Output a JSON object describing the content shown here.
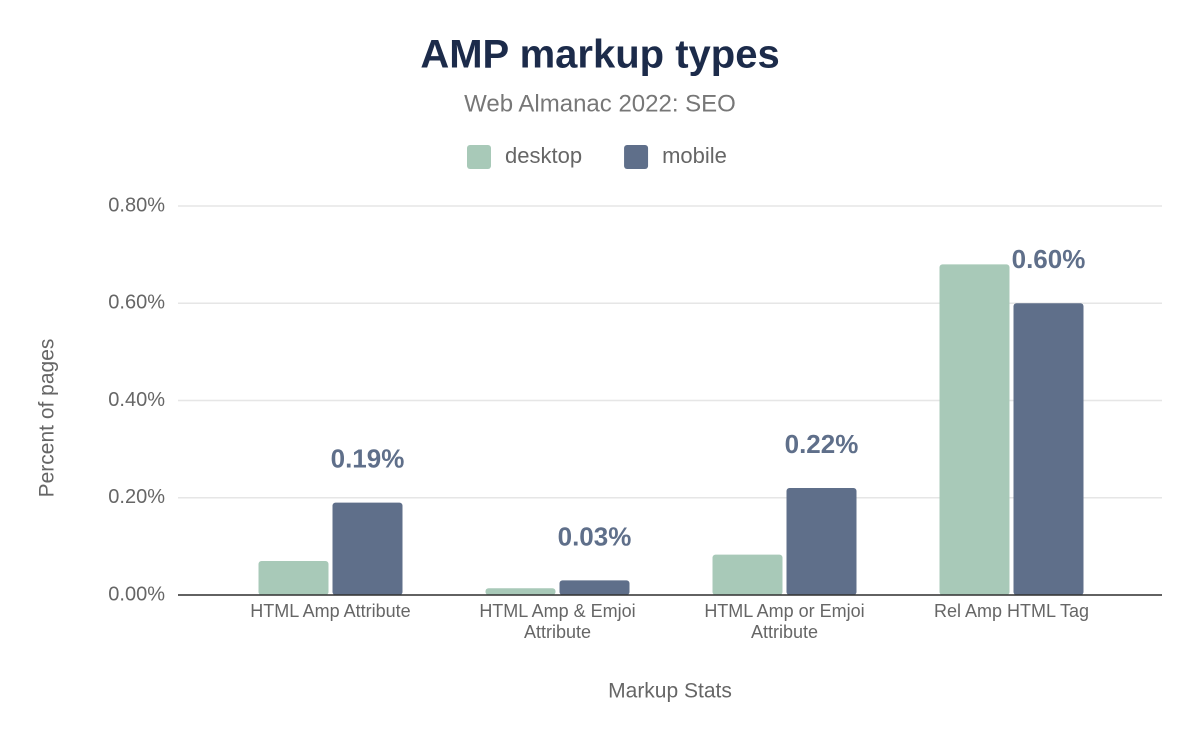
{
  "chart_data": {
    "type": "bar",
    "title": "AMP markup types",
    "subtitle": "Web Almanac 2022: SEO",
    "x_label": "Markup Stats",
    "y_label": "Percent of pages",
    "categories": [
      "HTML Amp Attribute",
      "HTML Amp & Emjoi Attribute",
      "HTML Amp or Emjoi Attribute",
      "Rel Amp HTML Tag"
    ],
    "series": [
      {
        "name": "desktop",
        "color": "#a8c9b8",
        "values": [
          0.07,
          0.014,
          0.083,
          0.68
        ]
      },
      {
        "name": "mobile",
        "color": "#5f6f8a",
        "values": [
          0.19,
          0.03,
          0.22,
          0.6
        ],
        "value_labels": [
          "0.19%",
          "0.03%",
          "0.22%",
          "0.60%"
        ]
      }
    ],
    "ylim": [
      0,
      0.8
    ],
    "yticks": [
      {
        "value": 0,
        "label": "0.00%"
      },
      {
        "value": 0.2,
        "label": "0.20%"
      },
      {
        "value": 0.4,
        "label": "0.40%"
      },
      {
        "value": 0.6,
        "label": "0.60%"
      },
      {
        "value": 0.8,
        "label": "0.80%"
      }
    ],
    "grid": true
  }
}
